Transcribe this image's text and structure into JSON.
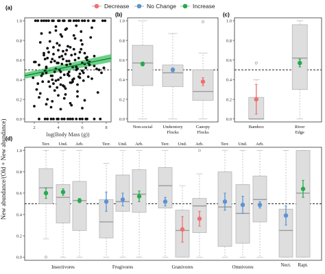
{
  "legend": [
    {
      "label": "Decrease",
      "color": "#f06f6f"
    },
    {
      "label": "No Change",
      "color": "#5b93d4"
    },
    {
      "label": "Increase",
      "color": "#23ac4a"
    }
  ],
  "y_axis_title": "New abundance/(Old + New abundance)",
  "chart_data": [
    {
      "panel": "(a)",
      "type": "scatter",
      "xlabel": "log(Body Mass (g))",
      "xticks": [
        2,
        4,
        6,
        8
      ],
      "yticks": [
        0.0,
        0.2,
        0.4,
        0.6,
        0.8,
        1.0
      ],
      "xlim": [
        1.2,
        8.4
      ],
      "ylim": [
        -0.03,
        1.03
      ],
      "reference_line": 0.5,
      "trend": {
        "x": [
          1.2,
          8.4
        ],
        "y": [
          0.44,
          0.62
        ],
        "ci_lower": [
          0.41,
          0.58
        ],
        "ci_upper": [
          0.47,
          0.66
        ],
        "color": "#1aa64a"
      },
      "points_x": [
        1.9,
        2.4,
        2.7,
        2.9,
        3.0,
        3.1,
        3.3,
        3.4,
        3.5,
        3.6,
        3.7,
        3.8,
        3.9,
        4.0,
        4.1,
        4.2,
        4.3,
        4.4,
        4.5,
        4.6,
        4.7,
        4.8,
        4.9,
        5.0,
        5.1,
        5.2,
        5.3,
        5.4,
        5.5,
        5.6,
        5.7,
        5.8,
        5.9,
        6.0,
        6.1,
        6.2,
        6.3,
        6.4,
        6.5,
        6.6,
        7.0,
        7.4,
        7.8,
        2.2,
        2.6,
        2.8,
        3.0,
        3.2,
        3.3,
        3.5,
        3.6,
        3.7,
        3.9,
        4.0,
        4.2,
        4.3,
        4.5,
        4.7,
        4.8,
        5.0,
        5.2,
        5.4,
        5.6,
        5.8,
        6.0,
        6.2,
        6.4,
        6.8,
        7.6,
        2.1,
        2.5,
        2.9,
        3.1,
        3.4,
        3.6,
        3.8,
        4.0,
        4.1,
        4.3,
        4.4,
        4.6,
        4.8,
        4.9,
        5.1,
        5.3,
        5.5,
        5.7,
        5.9,
        6.1,
        6.3,
        6.6,
        7.2,
        2.3,
        2.7,
        3.0,
        3.2,
        3.5,
        3.7,
        3.9,
        4.1,
        4.2,
        4.4,
        4.6,
        4.7,
        4.9,
        5.0,
        5.2,
        5.4,
        5.6,
        5.8,
        6.0,
        6.5,
        7.0,
        7.8,
        2.0,
        2.4,
        2.8,
        3.1,
        3.3,
        3.5,
        3.8,
        4.0,
        4.2,
        4.5,
        4.7,
        5.0,
        5.3,
        5.6,
        5.9,
        6.2,
        6.7,
        7.3,
        2.6,
        3.0,
        3.4,
        3.8,
        4.2,
        4.6,
        5.1,
        5.5,
        6.0,
        6.8,
        2.0,
        2.5,
        3.0,
        3.5,
        4.0,
        4.5,
        5.0,
        5.5,
        6.0,
        6.5,
        7.0,
        7.9,
        2.3,
        2.8,
        3.2,
        3.6,
        4.1,
        4.4,
        4.9,
        5.3,
        5.7,
        6.2,
        6.9,
        7.7,
        2.1,
        2.6,
        3.1,
        3.6,
        4.0,
        4.5,
        5.0,
        5.5,
        6.0,
        6.4,
        7.0,
        2.4,
        2.9,
        3.4,
        3.9,
        4.3,
        4.8,
        5.2,
        5.8,
        6.3,
        7.5
      ],
      "points_y": [
        0.42,
        0.55,
        0.38,
        0.61,
        0.47,
        0.72,
        0.33,
        0.58,
        0.44,
        0.66,
        0.29,
        0.51,
        0.77,
        0.4,
        0.63,
        0.35,
        0.56,
        0.69,
        0.45,
        0.31,
        0.59,
        0.74,
        0.48,
        0.37,
        0.65,
        0.53,
        0.41,
        0.82,
        0.5,
        0.28,
        0.62,
        0.46,
        0.71,
        0.57,
        0.39,
        0.67,
        0.52,
        0.6,
        0.43,
        0.58,
        0.54,
        0.5,
        0.52,
        0.3,
        0.44,
        0.67,
        0.52,
        0.38,
        0.79,
        0.61,
        0.36,
        0.48,
        0.57,
        0.7,
        0.42,
        0.64,
        0.33,
        0.55,
        0.46,
        0.73,
        0.4,
        0.6,
        0.35,
        0.68,
        0.49,
        0.56,
        0.63,
        0.41,
        0.47,
        0.58,
        0.26,
        0.49,
        0.62,
        0.44,
        0.73,
        0.39,
        0.57,
        0.5,
        0.84,
        0.34,
        0.66,
        0.45,
        0.59,
        0.37,
        0.71,
        0.53,
        0.43,
        0.8,
        0.47,
        0.62,
        0.55,
        0.51,
        0.36,
        0.46,
        0.53,
        0.68,
        0.4,
        0.59,
        0.32,
        0.75,
        0.48,
        0.61,
        0.25,
        0.7,
        0.44,
        0.56,
        0.38,
        0.66,
        0.51,
        0.42,
        0.76,
        0.57,
        0.64,
        0.52,
        0.58,
        0.22,
        0.65,
        0.2,
        0.88,
        0.18,
        0.9,
        0.24,
        0.86,
        0.21,
        0.92,
        0.16,
        0.85,
        0.23,
        0.89,
        0.19,
        0.83,
        0.27,
        0.87,
        0.15,
        0.12,
        0.94,
        0.1,
        0.91,
        0.14,
        0.95,
        0.11,
        0.93,
        0.13,
        0.78,
        1.0,
        1.0,
        1.0,
        1.0,
        1.0,
        1.0,
        1.0,
        1.0,
        1.0,
        1.0,
        1.0,
        1.0,
        1.0,
        1.0,
        1.0,
        1.0,
        1.0,
        1.0,
        1.0,
        1.0,
        1.0,
        1.0,
        1.0,
        1.0,
        0.0,
        0.0,
        0.0,
        0.0,
        0.0,
        0.0,
        0.0,
        0.0,
        0.0,
        0.0,
        0.0,
        0.0,
        0.0,
        0.0,
        0.0,
        0.0,
        0.0,
        0.0,
        0.0,
        0.0,
        0.0,
        0.0,
        0.0,
        0.0,
        0.0,
        0.0,
        0.0,
        0.0,
        0.0,
        0.0,
        0.0,
        0.0,
        0.0,
        0.0,
        0.0,
        0.0,
        0.0,
        0.0,
        0.0,
        0.0,
        0.0,
        0.0,
        0.0,
        0.0,
        0.0,
        0.0,
        0.0,
        0.0,
        0.0
      ]
    },
    {
      "panel": "(b)",
      "type": "box",
      "yticks": [
        0.0,
        0.2,
        0.4,
        0.6,
        0.8,
        1.0
      ],
      "ylim": [
        -0.03,
        1.03
      ],
      "reference_line": 0.5,
      "groups": [
        {
          "label": "Non-social",
          "q1": 0.34,
          "median": 0.57,
          "q3": 0.75,
          "wlo": 0.0,
          "whi": 1.0,
          "outliers": [],
          "mean": 0.56,
          "err": 0.02,
          "color": "#23ac4a"
        },
        {
          "label": "Understory Flocks",
          "q1": 0.33,
          "median": 0.47,
          "q3": 0.55,
          "wlo": 0.0,
          "whi": 0.87,
          "outliers": [],
          "mean": 0.5,
          "err": 0.02,
          "color": "#5b93d4"
        },
        {
          "label": "Canopy Flocks",
          "q1": 0.19,
          "median": 0.28,
          "q3": 0.5,
          "wlo": 0.0,
          "whi": 0.67,
          "outliers": [
            0.99
          ],
          "mean": 0.38,
          "err": 0.04,
          "color": "#f06f6f"
        }
      ]
    },
    {
      "panel": "(c)",
      "type": "box",
      "yticks": [
        0.0,
        0.2,
        0.4,
        0.6,
        0.8,
        1.0
      ],
      "ylim": [
        -0.03,
        1.03
      ],
      "reference_line": 0.5,
      "groups": [
        {
          "label": "Bamboo",
          "q1": 0.0,
          "median": 0.0,
          "q3": 0.22,
          "wlo": 0.0,
          "whi": 0.4,
          "outliers": [
            0.57
          ],
          "mean": 0.2,
          "err": 0.15,
          "color": "#f06f6f"
        },
        {
          "label": "River Edge",
          "q1": 0.3,
          "median": 0.62,
          "q3": 0.96,
          "wlo": 0.0,
          "whi": 1.0,
          "outliers": [],
          "mean": 0.57,
          "err": 0.04,
          "color": "#23ac4a"
        }
      ]
    },
    {
      "panel": "(d)",
      "type": "box",
      "yticks": [
        0.0,
        0.2,
        0.4,
        0.6,
        0.8,
        1.0
      ],
      "ylim": [
        -0.03,
        1.03
      ],
      "reference_line": 0.5,
      "diet_groups": [
        "Insectivores",
        "Frugivores",
        "Granivores",
        "Omnivores",
        "Nect.",
        "Rapt."
      ],
      "strata_labels": [
        "Terr.",
        "Und.",
        "Arb."
      ],
      "boxes": [
        {
          "diet": "Insectivores",
          "stratum": "Terr.",
          "q1": 0.5,
          "median": 0.65,
          "q3": 0.83,
          "wlo": 0.17,
          "whi": 1.0,
          "outliers": [
            0.0
          ],
          "mean": 0.6,
          "err": 0.05,
          "color": "#23ac4a"
        },
        {
          "diet": "Insectivores",
          "stratum": "Und.",
          "q1": 0.32,
          "median": 0.56,
          "q3": 0.68,
          "wlo": 0.0,
          "whi": 1.0,
          "outliers": [],
          "mean": 0.61,
          "err": 0.03,
          "color": "#23ac4a"
        },
        {
          "diet": "Insectivores",
          "stratum": "Arb.",
          "q1": 0.25,
          "median": 0.53,
          "q3": 0.71,
          "wlo": 0.0,
          "whi": 1.0,
          "outliers": [],
          "mean": 0.53,
          "err": 0.02,
          "color": "#23ac4a"
        },
        {
          "diet": "Frugivores",
          "stratum": "Terr.",
          "q1": 0.18,
          "median": 0.33,
          "q3": 0.54,
          "wlo": 0.0,
          "whi": 0.88,
          "outliers": [],
          "mean": 0.52,
          "err": 0.09,
          "color": "#5b93d4"
        },
        {
          "diet": "Frugivores",
          "stratum": "Und.",
          "q1": 0.43,
          "median": 0.52,
          "q3": 0.77,
          "wlo": 0.0,
          "whi": 1.0,
          "outliers": [],
          "mean": 0.54,
          "err": 0.06,
          "color": "#5b93d4"
        },
        {
          "diet": "Frugivores",
          "stratum": "Arb.",
          "q1": 0.42,
          "median": 0.59,
          "q3": 0.82,
          "wlo": 0.0,
          "whi": 1.0,
          "outliers": [],
          "mean": 0.57,
          "err": 0.05,
          "color": "#23ac4a"
        },
        {
          "diet": "Granivores",
          "stratum": "Terr.",
          "q1": 0.46,
          "median": 0.67,
          "q3": 0.84,
          "wlo": 0.0,
          "whi": 1.0,
          "outliers": [],
          "mean": 0.52,
          "err": 0.04,
          "color": "#5b93d4"
        },
        {
          "diet": "Granivores",
          "stratum": "Und.",
          "q1": 0.0,
          "median": 0.25,
          "q3": 0.44,
          "wlo": 0.0,
          "whi": 0.67,
          "outliers": [],
          "mean": 0.26,
          "err": 0.12,
          "color": "#f06f6f"
        },
        {
          "diet": "Granivores",
          "stratum": "Arb.",
          "q1": 0.23,
          "median": 0.48,
          "q3": 0.55,
          "wlo": 0.0,
          "whi": 0.78,
          "outliers": [
            1.0
          ],
          "mean": 0.36,
          "err": 0.07,
          "color": "#f06f6f"
        },
        {
          "diet": "Omnivores",
          "stratum": "Terr.",
          "q1": 0.1,
          "median": 0.47,
          "q3": 0.8,
          "wlo": 0.0,
          "whi": 1.0,
          "outliers": [],
          "mean": 0.52,
          "err": 0.08,
          "color": "#5b93d4"
        },
        {
          "diet": "Omnivores",
          "stratum": "Und.",
          "q1": 0.13,
          "median": 0.41,
          "q3": 0.68,
          "wlo": 0.0,
          "whi": 1.0,
          "outliers": [],
          "mean": 0.49,
          "err": 0.08,
          "color": "#5b93d4"
        },
        {
          "diet": "Omnivores",
          "stratum": "Arb.",
          "q1": 0.33,
          "median": 0.54,
          "q3": 0.76,
          "wlo": 0.0,
          "whi": 1.0,
          "outliers": [],
          "mean": 0.49,
          "err": 0.03,
          "color": "#5b93d4"
        },
        {
          "diet": "Nect.",
          "stratum": "",
          "q1": 0.0,
          "median": 0.25,
          "q3": 0.45,
          "wlo": 0.0,
          "whi": 1.0,
          "outliers": [],
          "mean": 0.39,
          "err": 0.09,
          "color": "#5b93d4"
        },
        {
          "diet": "Rapt.",
          "stratum": "",
          "q1": 0.0,
          "median": 0.6,
          "q3": 1.0,
          "wlo": 0.0,
          "whi": 1.0,
          "outliers": [],
          "mean": 0.64,
          "err": 0.08,
          "color": "#23ac4a"
        }
      ]
    }
  ]
}
